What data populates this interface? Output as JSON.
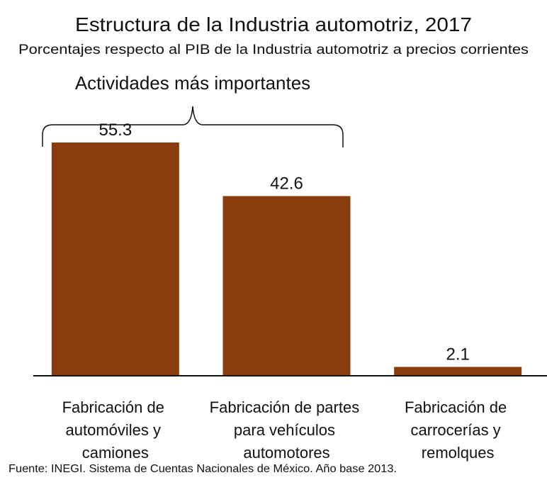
{
  "chart_data": {
    "type": "bar",
    "title": "Estructura de la Industria automotriz, 2017",
    "subtitle": "Porcentajes respecto al PIB de la Industria automotriz a precios corrientes",
    "annotation": "Actividades más importantes",
    "categories": [
      "Fabricación de automóviles y camiones",
      "Fabricación de partes para vehículos automotores",
      "Fabricación de carrocerías y remolques"
    ],
    "values": [
      55.3,
      42.6,
      2.1
    ],
    "color": "#8b3c0f",
    "source": "Fuente: INEGI. Sistema de Cuentas Nacionales de México. Año base 2013."
  }
}
